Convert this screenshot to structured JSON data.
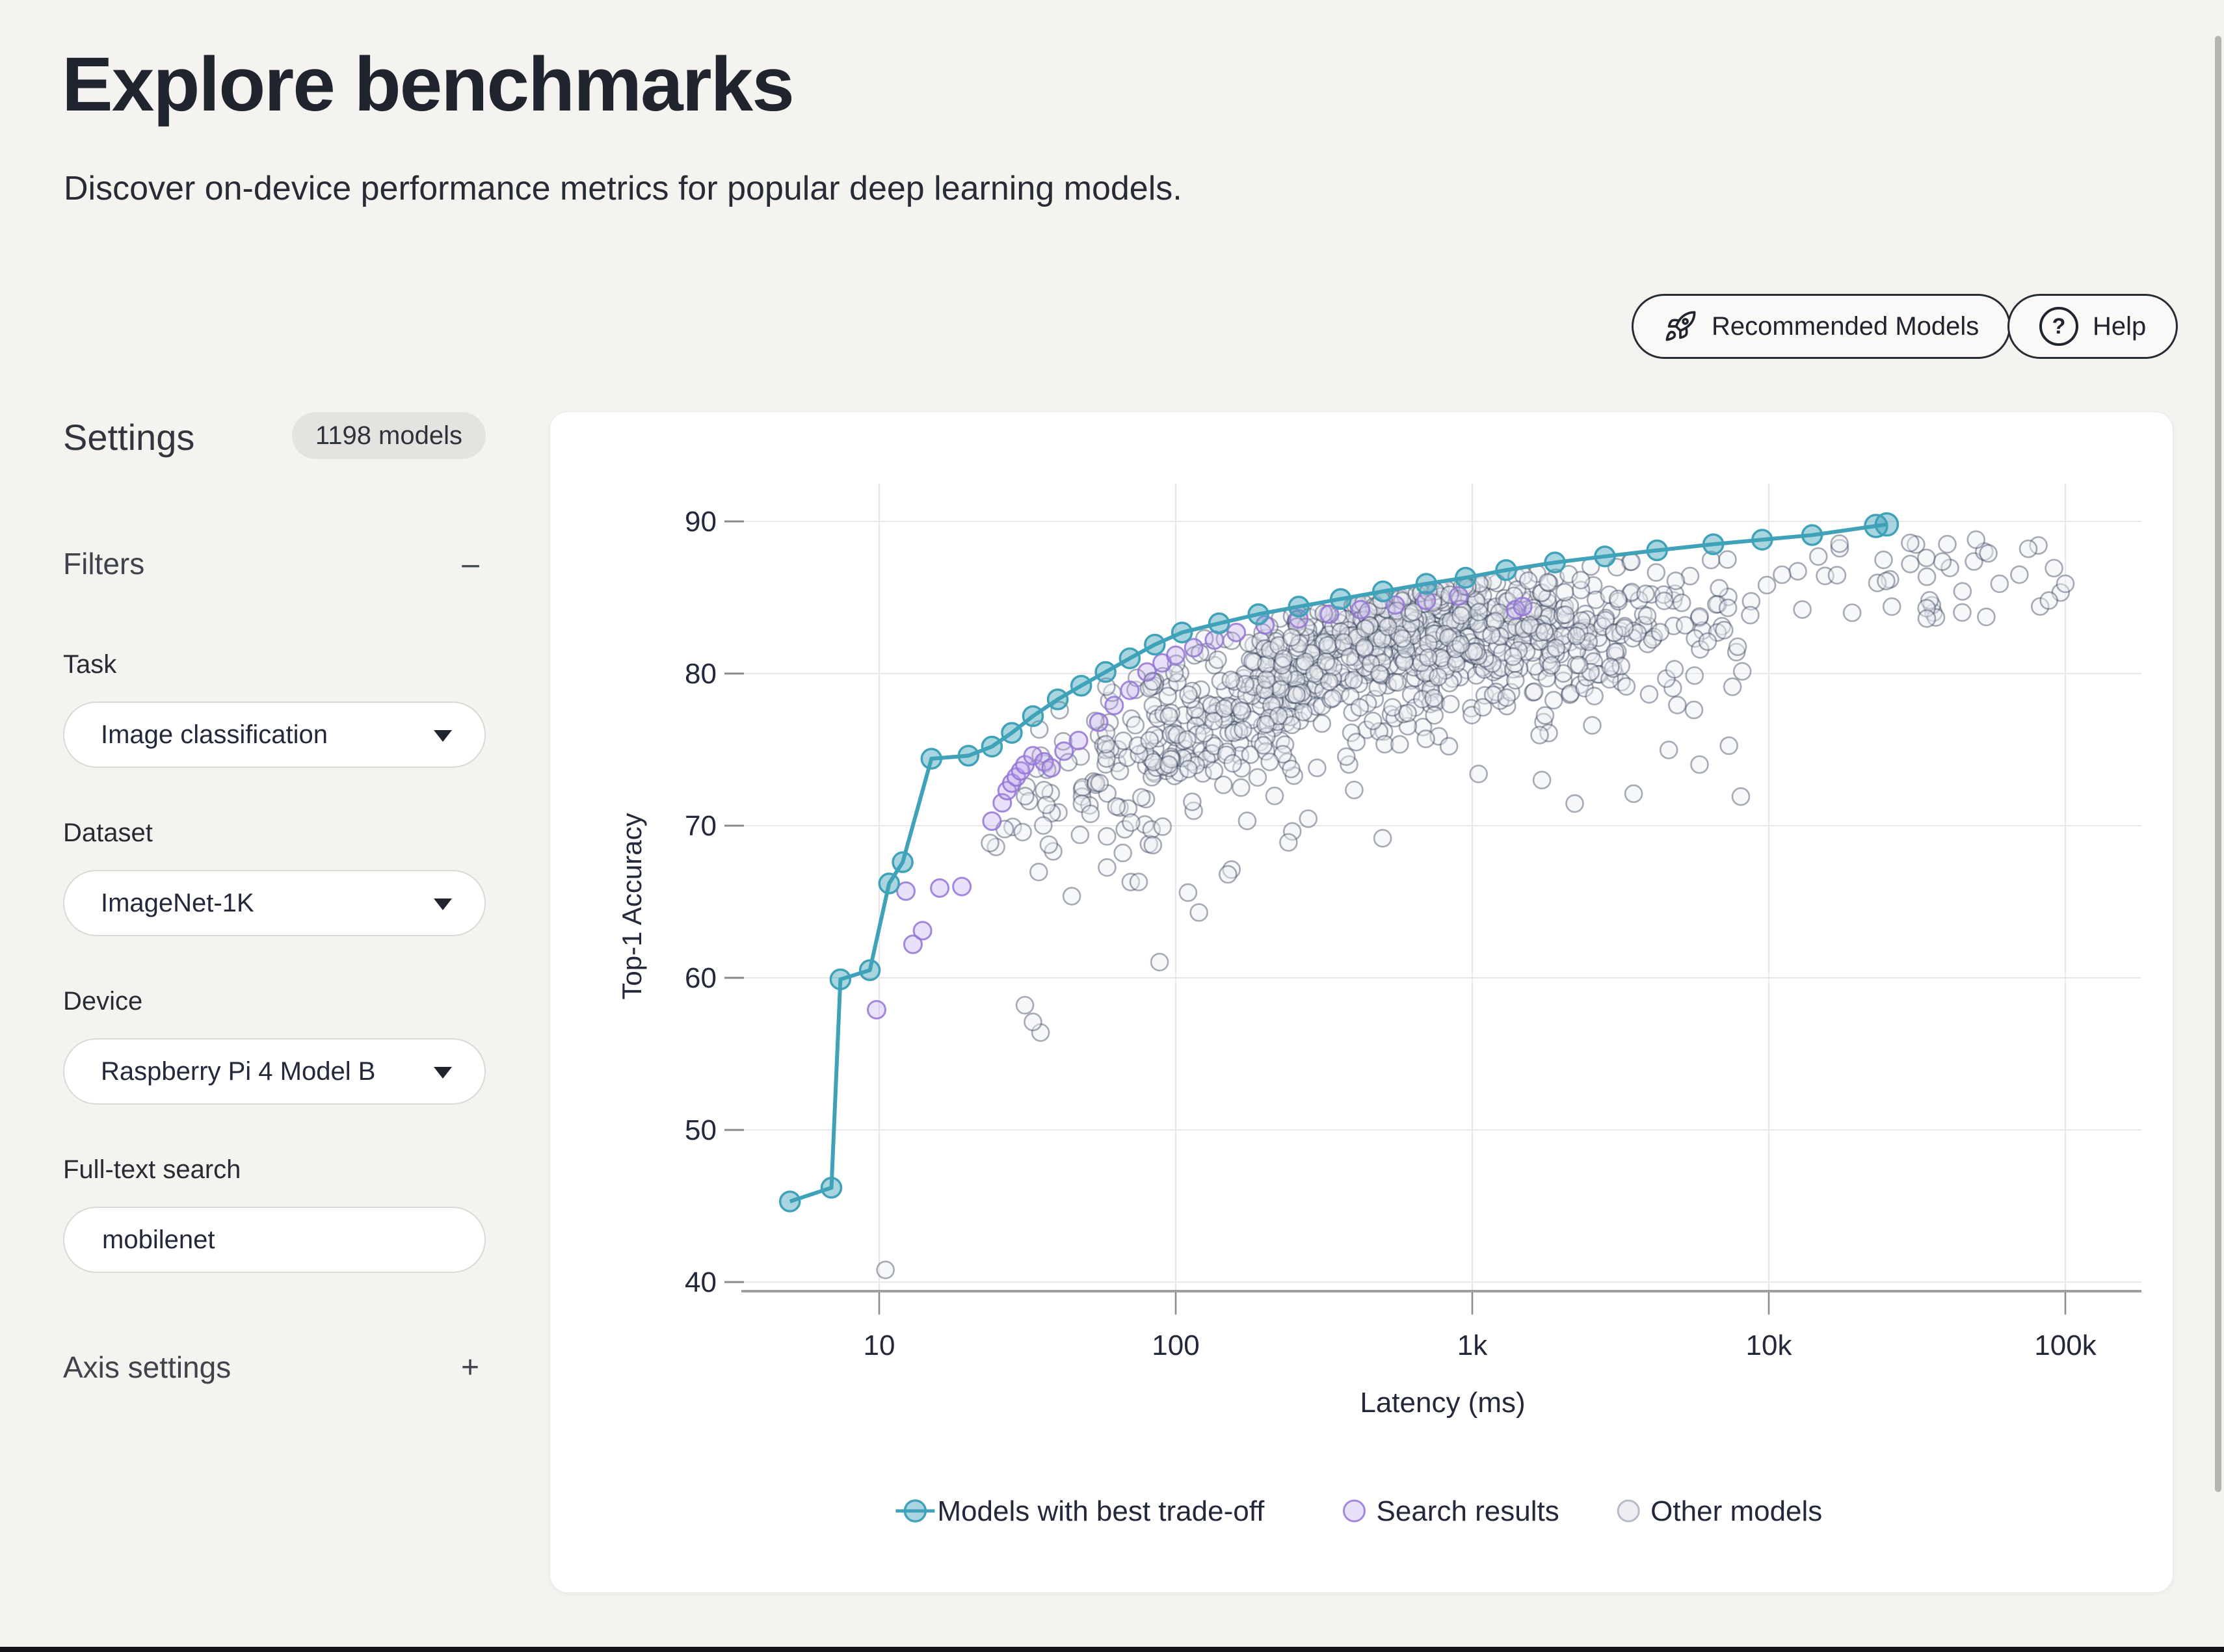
{
  "page": {
    "title": "Explore benchmarks",
    "subtitle": "Discover on-device performance metrics for popular deep learning models."
  },
  "header": {
    "buttons": [
      {
        "label": "Recommended Models",
        "icon": "rocket-icon"
      },
      {
        "label": "Help",
        "icon": "question-icon"
      }
    ]
  },
  "sidebar": {
    "title": "Settings",
    "models_badge": "1198 models",
    "filters": {
      "label": "Filters",
      "collapse_symbol": "–"
    },
    "fields": [
      {
        "label": "Task",
        "value": "Image classification",
        "type": "dropdown"
      },
      {
        "label": "Dataset",
        "value": "ImageNet-1K",
        "type": "dropdown"
      },
      {
        "label": "Device",
        "value": "Raspberry Pi 4 Model B",
        "type": "dropdown"
      },
      {
        "label": "Full-text search",
        "value": "mobilenet",
        "type": "input"
      }
    ],
    "axis_settings": {
      "label": "Axis settings",
      "expand_symbol": "+"
    }
  },
  "chart_data": {
    "type": "scatter",
    "title": "",
    "xlabel": "Latency (ms)",
    "ylabel": "Top-1 Accuracy",
    "x_scale": "log",
    "xlim": [
      4,
      180000
    ],
    "ylim": [
      39,
      92.5
    ],
    "x_ticks": [
      {
        "label": "10",
        "value": 10
      },
      {
        "label": "100",
        "value": 100
      },
      {
        "label": "1k",
        "value": 1000
      },
      {
        "label": "10k",
        "value": 10000
      },
      {
        "label": "100k",
        "value": 100000
      }
    ],
    "y_ticks": [
      40,
      50,
      60,
      70,
      80,
      90
    ],
    "grid": true,
    "legend_position": "bottom",
    "legend": [
      {
        "label": "Models with best trade-off",
        "marker": "line-circle"
      },
      {
        "label": "Search results",
        "marker": "circle"
      },
      {
        "label": "Other models",
        "marker": "circle"
      }
    ],
    "colors": {
      "pareto_stroke": "#3fa2b8",
      "pareto_fill": "rgba(63,162,184,0.45)",
      "search_stroke": "rgba(148,116,215,0.85)",
      "search_fill": "rgba(186,160,235,0.32)",
      "other_stroke": "rgba(47,59,86,0.42)",
      "other_fill": "rgba(235,238,242,0.45)",
      "gridline": "#e7e7e9",
      "axis_line": "#a0a0a2",
      "tick": "#8a8a8c",
      "text": "#23283a"
    },
    "series": {
      "pareto": {
        "name": "Models with best trade-off",
        "points": [
          [
            5,
            45.3
          ],
          [
            6.9,
            46.2
          ],
          [
            7.4,
            59.9
          ],
          [
            9.3,
            60.5
          ],
          [
            10.8,
            66.2
          ],
          [
            12,
            67.6
          ],
          [
            15,
            74.4
          ],
          [
            20,
            74.6
          ],
          [
            24,
            75.2
          ],
          [
            28,
            76.1
          ],
          [
            33,
            77.2
          ],
          [
            40,
            78.3
          ],
          [
            48,
            79.2
          ],
          [
            58,
            80.1
          ],
          [
            70,
            81.0
          ],
          [
            85,
            81.9
          ],
          [
            105,
            82.7
          ],
          [
            140,
            83.3
          ],
          [
            190,
            83.9
          ],
          [
            260,
            84.4
          ],
          [
            360,
            84.9
          ],
          [
            500,
            85.4
          ],
          [
            700,
            85.9
          ],
          [
            950,
            86.3
          ],
          [
            1300,
            86.8
          ],
          [
            1900,
            87.3
          ],
          [
            2800,
            87.7
          ],
          [
            4200,
            88.1
          ],
          [
            6500,
            88.5
          ],
          [
            9500,
            88.8
          ],
          [
            14000,
            89.1
          ],
          [
            23000,
            89.7
          ],
          [
            25000,
            89.8
          ]
        ]
      },
      "search_results": {
        "name": "Search results",
        "points": [
          [
            9.8,
            57.9
          ],
          [
            13,
            62.2
          ],
          [
            14,
            63.1
          ],
          [
            12.3,
            65.7
          ],
          [
            16,
            65.9
          ],
          [
            19,
            66.0
          ],
          [
            24,
            70.3
          ],
          [
            26,
            71.5
          ],
          [
            27,
            72.3
          ],
          [
            28,
            72.8
          ],
          [
            29,
            73.2
          ],
          [
            30,
            73.6
          ],
          [
            31,
            74.0
          ],
          [
            33,
            74.6
          ],
          [
            36,
            74.2
          ],
          [
            38,
            73.8
          ],
          [
            42,
            74.9
          ],
          [
            47,
            75.6
          ],
          [
            55,
            76.8
          ],
          [
            62,
            77.9
          ],
          [
            70,
            78.9
          ],
          [
            80,
            80.1
          ],
          [
            90,
            80.7
          ],
          [
            100,
            81.2
          ],
          [
            115,
            81.7
          ],
          [
            135,
            82.2
          ],
          [
            160,
            82.7
          ],
          [
            200,
            83.2
          ],
          [
            260,
            83.6
          ],
          [
            330,
            83.9
          ],
          [
            420,
            84.2
          ],
          [
            550,
            84.5
          ],
          [
            700,
            84.8
          ],
          [
            900,
            85.1
          ],
          [
            1400,
            84.2
          ],
          [
            1480,
            84.4
          ]
        ]
      },
      "other_outliers": {
        "name": "Other models (notable outliers)",
        "points": [
          [
            10.5,
            40.8
          ],
          [
            31,
            58.2
          ],
          [
            35,
            56.4
          ],
          [
            33,
            57.1
          ],
          [
            75,
            66.3
          ],
          [
            110,
            65.6
          ],
          [
            150,
            66.8
          ],
          [
            240,
            68.9
          ],
          [
            1050,
            73.4
          ],
          [
            3500,
            72.1
          ],
          [
            26000,
            84.4
          ],
          [
            30000,
            87.2
          ],
          [
            34000,
            87.6
          ],
          [
            40000,
            88.5
          ],
          [
            45000,
            85.4
          ],
          [
            50000,
            88.8
          ],
          [
            55000,
            87.9
          ],
          [
            60000,
            85.9
          ],
          [
            70000,
            86.5
          ],
          [
            75000,
            88.2
          ],
          [
            88000,
            84.8
          ],
          [
            100000,
            85.9
          ]
        ]
      },
      "other_cloud": {
        "name": "Other models (dense cloud)",
        "generated": true,
        "seed": 7,
        "count": 1020,
        "lx_min": 1.35,
        "lx_span": 2.72,
        "center_slope": 9.5,
        "center_intercept": 58.5,
        "center_cap": 84.3,
        "tail_mean": 2.1,
        "jitter": 1.7,
        "hugger_fraction": 0.1,
        "right_tail": {
          "count": 32,
          "lx_min": 4.02,
          "lx_span": 0.98,
          "acc_min": 83.6,
          "acc_span": 5.2
        }
      }
    }
  }
}
